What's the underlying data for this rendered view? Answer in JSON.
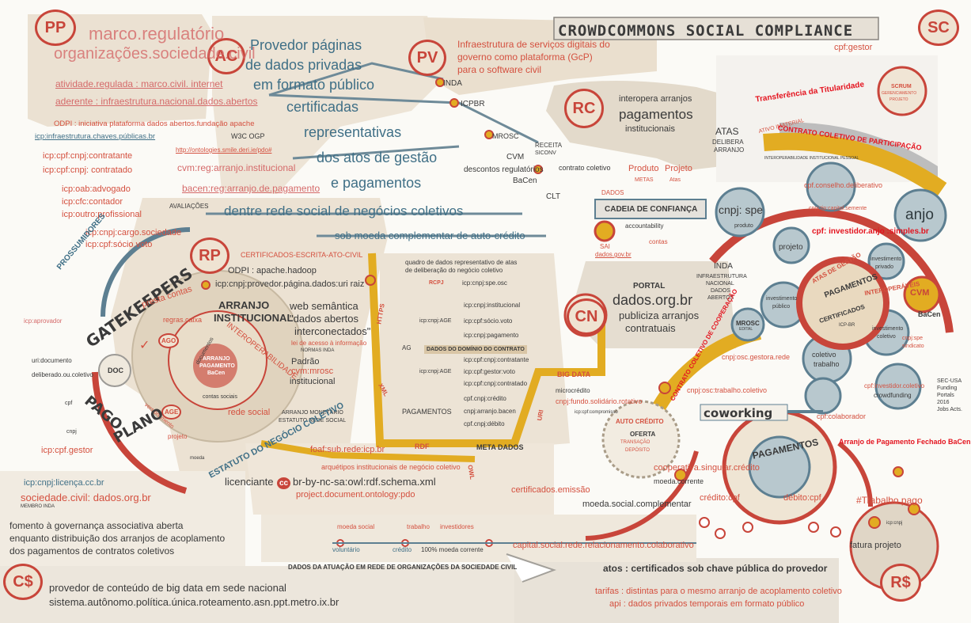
{
  "title": "CROWDCOMMONS SOCIAL COMPLIANCE",
  "colors": {
    "red": "#c8453a",
    "blue_grey": "#5d7f91",
    "tan": "#dccbb4",
    "gold": "#e2ac22",
    "paper": "#f1ebe1",
    "bright_red": "#e4141f"
  },
  "badges": {
    "pp": "PP",
    "sc": "SC",
    "ac": "AC",
    "pv": "PV",
    "rc": "RC",
    "rp": "RP",
    "cn": "CN",
    "cs": "C$",
    "rs": "R$"
  },
  "pp_block": {
    "line1": "marco.regulatório",
    "line2": "organizações.sociedade.civil",
    "line3": "atividade.regulada : marco.civil. internet",
    "line4": "aderente : infraestrutura.nacional.dados.abertos",
    "line5": "ODPI : iniciativa plataforma dados abertos.fundação apache",
    "line6": "icp:infraestrutura.chaves.públicas.br"
  },
  "ac_block": {
    "line1": "Provedor páginas",
    "line2": "de dados privadas",
    "line3": "em formato público",
    "line4": "certificadas",
    "line5": "representativas",
    "line6": "dos atos de gestão",
    "line7": "e pagamentos",
    "w3c": "W3C OGP",
    "ontology": "http://ontologies.smile.deri.ie/pdo#",
    "cvm": "cvm:reg:arranjo.institucional",
    "bacen": "bacen:reg:arranjo.de.pagamento",
    "network": "dentre rede social de negócios coletivos",
    "moeda": "sob moeda complementar de auto-crédito"
  },
  "pv_block": {
    "line1": "Infraestrutura de serviços digitais do",
    "line2": "governo como plataforma (GcP)",
    "line3": "para o software civil",
    "inda": "INDA",
    "icpbr": "ICPBR",
    "mrosc": "MROSC",
    "cvm": "CVM",
    "receita": "RECEITA",
    "siconv": "SICONV",
    "descontos": "descontos regulatórios",
    "bacen": "BaCen",
    "contrato": "contrato coletivo",
    "clt": "CLT"
  },
  "rc_block": {
    "line1": "interopera arranjos",
    "line2": "pagamentos",
    "line3": "institucionais",
    "atas": "ATAS",
    "delibera": "DELIBERA",
    "arranjo": "ARRANJO",
    "produto": "Produto",
    "projeto": "Projeto",
    "metas": "METAS",
    "atas2": "Atas",
    "dados": "DADOS",
    "cadeia": "CADEIA DE CONFIANÇA",
    "accountability": "accountability",
    "sai": "SAI",
    "dadosgov": "dados.gov.br",
    "contas": "contas"
  },
  "left_list": {
    "items": [
      "icp:cpf:cnpj:contratante",
      "icp:cpf:cnpj: contratado",
      "icp:oab:advogado",
      "icp:cfc:contador",
      "icp:outro:profissional",
      "icp:cnpj:cargo.sociedade",
      "icp:cpf:sócio.voto"
    ],
    "avaliacoes": "AVALIAÇÕES",
    "prossumidores": "PROSSUMIDORES",
    "gatekeepers": "GATEKEEPERS",
    "icp_aprovador": "icp:aprovador"
  },
  "rp_block": {
    "certificados": "CERTIFICADOS-ESCRITA-ATO-CIVIL",
    "odpi": "ODPI : apache.hadoop",
    "provedor": "icp:cnpj:provedor.página.dados:uri raiz",
    "presta": "presta contas",
    "arranjo": "ARRANJO",
    "institucional": "INSTITUCIONAL",
    "interop": "INTEROPERABILIDADE",
    "web1": "web semântica",
    "web2": "\"dados abertos",
    "web3": "interconectados\"",
    "lei": "lei de acesso à informação",
    "normas": "NORMAS INDA",
    "padrao": "Padrão",
    "cvmmrosc": "cvm:mrosc",
    "institucional2": "institucional",
    "rede": "rede social",
    "arranjo_mon": "ARRANJO MONETÁRIO",
    "estatuto_rede": "ESTATUTO REDE SOCIAL",
    "regras": "regras.caixa",
    "ago": "AGO",
    "age": "AGE",
    "doc": "DOC",
    "center1": "ARRANJO",
    "center2": "PAGAMENTO",
    "center3": "BaCen",
    "documentos": "documentos",
    "contas_sociais": "contas sociais",
    "versionamento": "versionamento",
    "projeto": "projeto",
    "estatuto": "ESTATUTO DO NEGÓCIO COLETIVO",
    "moeda": "moeda"
  },
  "left_lower": {
    "uri": "uri:documento",
    "deliberado": "deliberado.ou.coletivo",
    "pago": "PAGO",
    "plano": "PLANO",
    "cpf": "cpf",
    "cnpj": "cnpj",
    "icpgestor": "icp:cpf.gestor",
    "licenca": "icp:cnpj:licença.cc.br",
    "sociedade": "sociedade.civil: dados.org.br",
    "membro": "MEMBRO INDA",
    "fomento1": "fomento à governança associativa aberta",
    "fomento2": "enquanto distribuição dos arranjos de acoplamento",
    "fomento3": "dos pagamentos de contratos coletivos"
  },
  "center_block": {
    "https": "HTTPS",
    "xml": "XML",
    "rdf": "RDF",
    "uri": "URI",
    "owl": "OWL",
    "quadro1": "quadro de dados representativo de atas",
    "quadro2": "de deliberação do negócio coletivo",
    "rcpj": "RCPJ",
    "icpcnpjspe": "icp:cnpj:spe.osc",
    "icpcnpjage": "icp:cnpj:AGE",
    "ag": "AG",
    "age_items": [
      "icp:cnpj:institucional",
      "icp:cpf:sócio.voto",
      "icp:cnpj:pagamento"
    ],
    "dominio": "DADOS DO DOMÍNIO DO CONTRATO",
    "icpcnpjage2": "icp:cnpj:AGE",
    "age_items2": [
      "icp:cpf:cnpj:contratante",
      "icp:cpf:gestor:voto",
      "icp:cpf:cnpj:contratado"
    ],
    "pagamentos": "PAGAMENTOS",
    "pag_items": [
      "cpf.cnpj:crédito",
      "cnpj:arranjo.bacen",
      "cpf.cnpj:débito"
    ],
    "foaf": "foaf:sub.rede:icp.br",
    "arquetipos": "arquétipos institucionais de negócio coletivo",
    "licenciante": "licenciante",
    "cc": "cc",
    "ccbr": "br-by-nc-sa:owl:rdf.schema.xml",
    "pdo": "project.document.ontology:pdo",
    "meta": "META DADOS",
    "bigdata": "BIG DATA",
    "microcredito": "microcrédito",
    "fundo": "cnpj:fundo.solidário.rotativo",
    "icpcompromisso": "icp:cpf:compromisso",
    "certificados": "certificados.emissão",
    "moedasocial": "moeda.social.complementar",
    "auto": "AUTO CRÉDITO",
    "oferta": "OFERTA",
    "transacao": "TRANSAÇÃO",
    "deposito": "DEPÓSITO"
  },
  "cn_block": {
    "portal": "PORTAL",
    "dados": "dados.org.br",
    "publiciza": "publiciza arranjos",
    "contratuais": "contratuais",
    "inda": "INDA",
    "infra1": "INFRAESTRUTURA",
    "infra2": "NACIONAL",
    "infra3": "DADOS",
    "infra4": "ABERTOS"
  },
  "sc_block": {
    "cpfgestor": "cpf:gestor",
    "titularidade": "Transferência da Titularidade",
    "scrum1": "SCRUM",
    "scrum2": "GERENCIAMENTO",
    "scrum3": "PROJETO",
    "ativo": "ATIVO IMATERIAL",
    "contrato": "CONTRATO COLETIVO DE PARTICIPAÇÃO",
    "interop": "INTEROPERABILIDADE INSTITUCIONAL PESSOAL",
    "cnpjspe": "cnpj: spe",
    "produto": "produto",
    "projeto": "projeto",
    "conselho": "cpf.conselho.deliberativo",
    "capital": "cnpj:tip:capital.semente",
    "anjo": "anjo",
    "investidor": "cpf: investidor.anjo :simples.br",
    "investimento_privado1": "investimento",
    "investimento_privado2": "privado",
    "atas": "ATAS DE GESTÃO",
    "pagamentos": "PAGAMENTOS",
    "certificados": "CERTIFICADOS",
    "icp": "ICP-BR",
    "interoperaveis": "INTEROPERÁVEIS",
    "cvm": "CVM",
    "bacen": "BaCen",
    "inv_pub1": "investimento",
    "inv_pub2": "público",
    "mrosc": "MROSC",
    "edital": "EDITAL",
    "inv_col1": "investimento",
    "inv_col2": "coletivo",
    "gestora": "cnpj:osc.gestora.rede",
    "coletivo1": "coletivo",
    "coletivo2": "trabalho",
    "cnpjspe2": "cnpj:spe",
    "sindicato": "sindicato",
    "trabalho": "cnpj:osc:trabalho.coletivo",
    "investidor_coletivo": "cpf:investidor.coletivo",
    "crowdfunding": "crowdfunding",
    "coworking": "coworking",
    "colaborador": "cpf:colaborador",
    "cooperacao": "CONTRATO COLETIVO DE COOPERAÇÃO",
    "secusa1": "SEC-USA",
    "secusa2": "Funding",
    "secusa3": "Portals",
    "secusa4": "2016",
    "secusa5": "Jobs Acts.",
    "arranjo_fechado": "Arranjo de Pagamento Fechado BaCen",
    "pagamentos2": "PAGAMENTOS",
    "cooperativa": "cooperativa.singular.crédito",
    "moeda": "moeda.corrente",
    "credito": "crédito:cpf",
    "debito": "débito:cpf",
    "trabalho_pago": "#Trabalho.pago",
    "fatura": "fatura projeto",
    "cnpj": "icp:cnpj"
  },
  "bottom_block": {
    "moeda_social": "moeda social",
    "trabalho": "trabalho",
    "investidores": "investidores",
    "voluntario": "voluntário",
    "crédito": "crédito",
    "moeda_corrente": "100% moeda corrente",
    "capital": "capital.social:rede.relacionamento.colaborativo",
    "dados_atuacao": "DADOS DA ATUAÇÃO EM REDE DE ORGANIZAÇÕES DA SOCIEDADE CIVIL",
    "cs1": "provedor de conteúdo de big data em sede nacional",
    "cs2": "sistema.autônomo.política.única.roteamento.asn.ppt.metro.ix.br",
    "atos": "atos : certificados sob chave pública do provedor",
    "tarifas": "tarifas : distintas para o mesmo arranjo de acoplamento coletivo",
    "api": "api : dados privados temporais em formato público"
  }
}
